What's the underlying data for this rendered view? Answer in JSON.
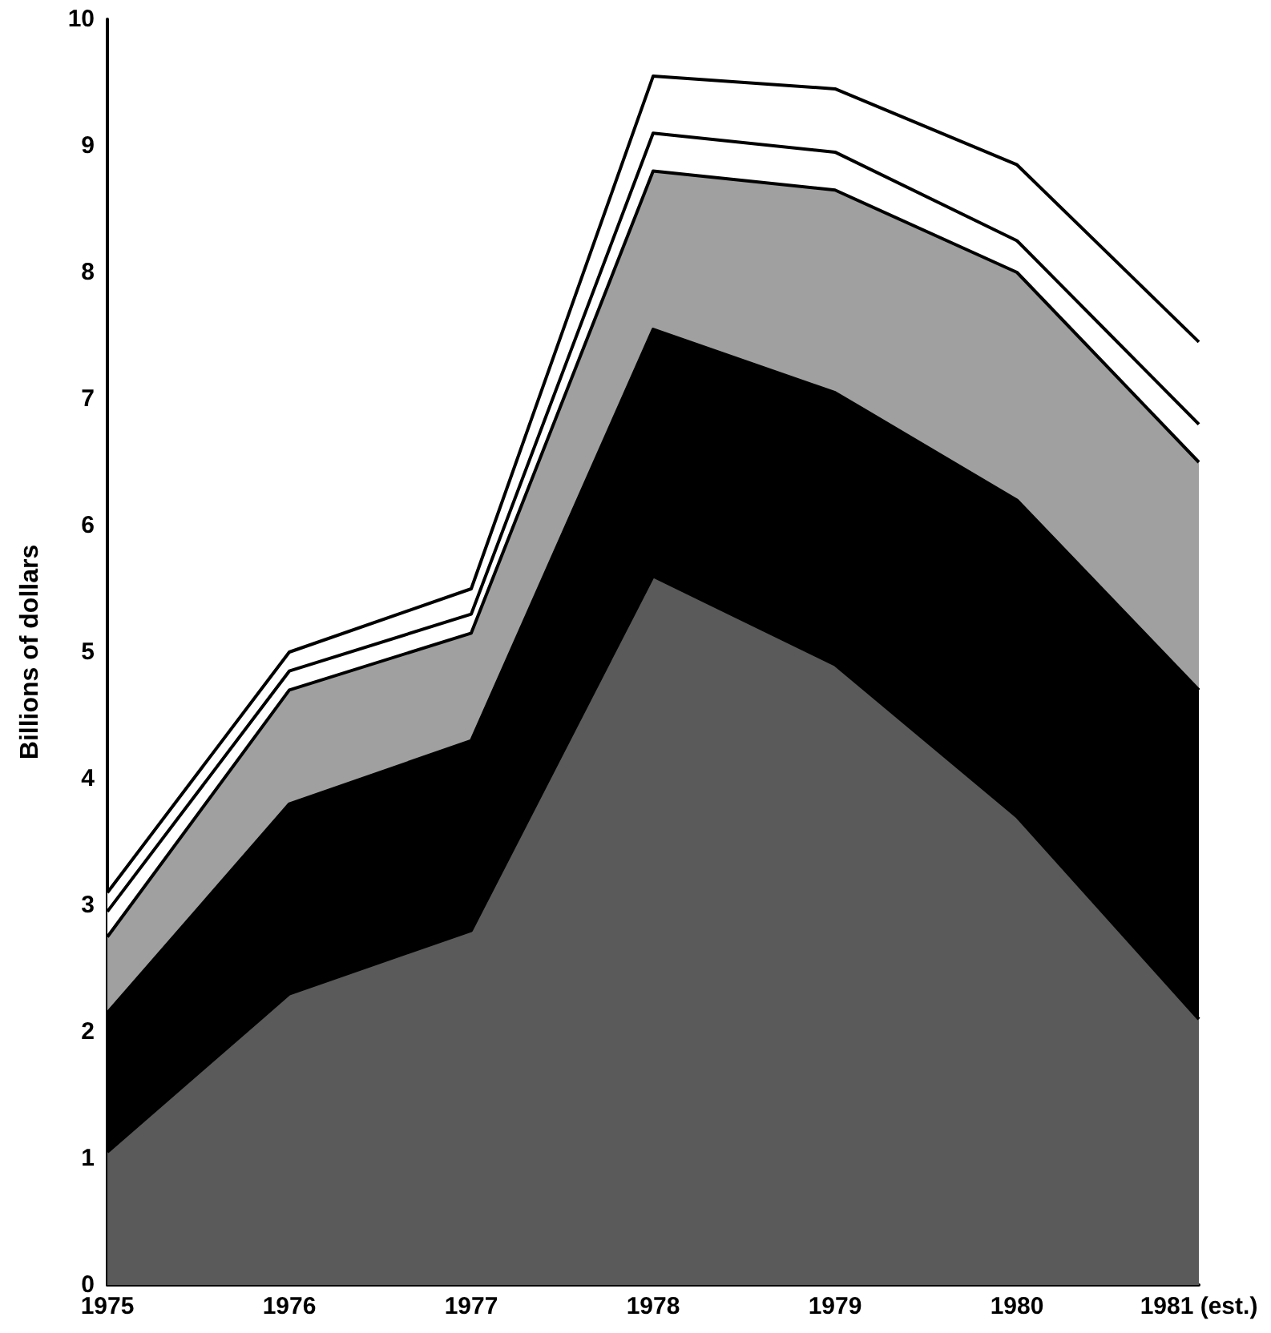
{
  "chart_data": {
    "type": "area",
    "ylabel": "Billions of dollars",
    "categories": [
      "1975",
      "1976",
      "1977",
      "1978",
      "1979",
      "1980",
      "1981 (est.)"
    ],
    "stacked": true,
    "series": [
      {
        "color": "#5a5a5a",
        "values": [
          1.05,
          2.3,
          2.8,
          5.6,
          4.9,
          3.7,
          2.1
        ]
      },
      {
        "color": "#000000",
        "values": [
          1.1,
          1.5,
          1.5,
          1.95,
          2.15,
          2.5,
          2.6
        ]
      },
      {
        "color": "#a0a0a0",
        "values": [
          0.6,
          0.9,
          0.85,
          1.25,
          1.6,
          1.8,
          1.8
        ]
      },
      {
        "color": "#ffffff",
        "values": [
          0.2,
          0.15,
          0.15,
          0.3,
          0.3,
          0.25,
          0.3
        ]
      },
      {
        "color": "#ffffff",
        "values": [
          0.15,
          0.15,
          0.2,
          0.45,
          0.5,
          0.6,
          0.65
        ]
      }
    ],
    "ylim": [
      0,
      10
    ],
    "yticks": [
      0,
      1,
      2,
      3,
      4,
      5,
      6,
      7,
      8,
      9,
      10
    ],
    "marker": "none",
    "line_style": "solid"
  }
}
